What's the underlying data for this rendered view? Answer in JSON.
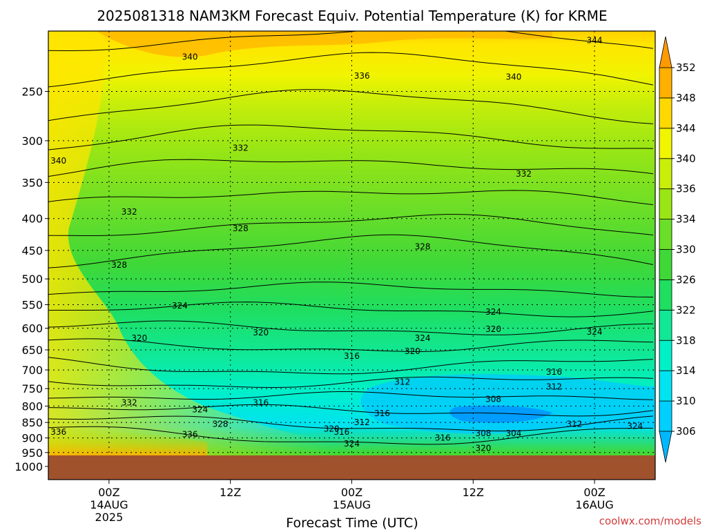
{
  "chart_data": {
    "type": "contour",
    "title": "2025081318 NAM3KM Forecast Equiv. Potential Temperature (K) for KRME",
    "xlabel": "Forecast Time (UTC)",
    "ylabel": "",
    "y_axis": {
      "scale": "log-pressure",
      "inverted": true,
      "ticks": [
        250,
        300,
        350,
        400,
        450,
        500,
        550,
        600,
        650,
        700,
        750,
        800,
        850,
        900,
        950,
        1000
      ],
      "range": [
        200,
        1050
      ]
    },
    "x_axis": {
      "range_hours": [
        -6,
        54
      ],
      "ticks": [
        {
          "hour": 0,
          "lines": [
            "00Z",
            "14AUG",
            "2025"
          ]
        },
        {
          "hour": 12,
          "lines": [
            "12Z"
          ]
        },
        {
          "hour": 24,
          "lines": [
            "00Z",
            "15AUG"
          ]
        },
        {
          "hour": 36,
          "lines": [
            "12Z"
          ]
        },
        {
          "hour": 48,
          "lines": [
            "00Z",
            "16AUG"
          ]
        }
      ]
    },
    "grid": true,
    "surface_pressure": 960,
    "colorbar": {
      "position": "right",
      "levels": [
        306,
        310,
        314,
        318,
        322,
        326,
        330,
        334,
        336,
        340,
        344,
        348,
        352
      ],
      "colors": [
        "#00cfff",
        "#00e3f0",
        "#00f0c8",
        "#10e896",
        "#1fde60",
        "#3fd838",
        "#6ade28",
        "#9ae614",
        "#c8ee0a",
        "#f2f500",
        "#ffd800",
        "#ffb000"
      ]
    },
    "contour_labels": [
      {
        "value": "344",
        "hour": 48,
        "p": 207
      },
      {
        "value": "340",
        "hour": 8,
        "p": 220
      },
      {
        "value": "336",
        "hour": 25,
        "p": 236
      },
      {
        "value": "340",
        "hour": 40,
        "p": 237
      },
      {
        "value": "340",
        "hour": -5,
        "p": 323
      },
      {
        "value": "332",
        "hour": 13,
        "p": 308
      },
      {
        "value": "332",
        "hour": 41,
        "p": 339
      },
      {
        "value": "332",
        "hour": 2,
        "p": 390
      },
      {
        "value": "328",
        "hour": 13,
        "p": 415
      },
      {
        "value": "328",
        "hour": 31,
        "p": 444
      },
      {
        "value": "328",
        "hour": 1,
        "p": 475
      },
      {
        "value": "324",
        "hour": 7,
        "p": 552
      },
      {
        "value": "324",
        "hour": 38,
        "p": 565
      },
      {
        "value": "320",
        "hour": 3,
        "p": 622
      },
      {
        "value": "320",
        "hour": 15,
        "p": 610
      },
      {
        "value": "320",
        "hour": 38,
        "p": 602
      },
      {
        "value": "324",
        "hour": 48,
        "p": 608
      },
      {
        "value": "324",
        "hour": 31,
        "p": 622
      },
      {
        "value": "320",
        "hour": 30,
        "p": 653
      },
      {
        "value": "316",
        "hour": 24,
        "p": 665
      },
      {
        "value": "316",
        "hour": 44,
        "p": 705
      },
      {
        "value": "312",
        "hour": 29,
        "p": 732
      },
      {
        "value": "312",
        "hour": 44,
        "p": 745
      },
      {
        "value": "308",
        "hour": 38,
        "p": 780
      },
      {
        "value": "316",
        "hour": 15,
        "p": 790
      },
      {
        "value": "332",
        "hour": 2,
        "p": 790
      },
      {
        "value": "324",
        "hour": 9,
        "p": 810
      },
      {
        "value": "316",
        "hour": 27,
        "p": 822
      },
      {
        "value": "312",
        "hour": 25,
        "p": 850
      },
      {
        "value": "328",
        "hour": 11,
        "p": 855
      },
      {
        "value": "336",
        "hour": -5,
        "p": 880
      },
      {
        "value": "336",
        "hour": 8,
        "p": 888
      },
      {
        "value": "320",
        "hour": 22,
        "p": 870
      },
      {
        "value": "316",
        "hour": 23,
        "p": 880
      },
      {
        "value": "312",
        "hour": 46,
        "p": 855
      },
      {
        "value": "324",
        "hour": 52,
        "p": 862
      },
      {
        "value": "308",
        "hour": 37,
        "p": 885
      },
      {
        "value": "304",
        "hour": 40,
        "p": 885
      },
      {
        "value": "316",
        "hour": 33,
        "p": 900
      },
      {
        "value": "324",
        "hour": 24,
        "p": 920
      },
      {
        "value": "320",
        "hour": 37,
        "p": 935
      }
    ]
  },
  "credit": "coolwx.com/models"
}
